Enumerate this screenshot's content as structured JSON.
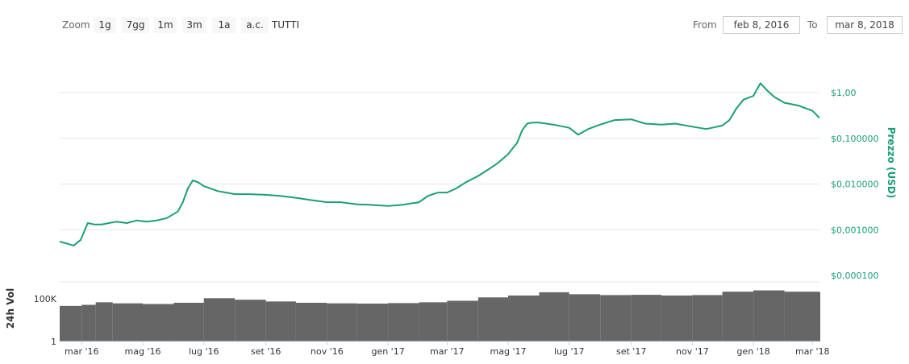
{
  "toolbar": {
    "zoom_label": "Zoom",
    "zoom_buttons": [
      "1g",
      "7gg",
      "1m",
      "3m",
      "1a",
      "a.c.",
      "TUTTI"
    ],
    "from_label": "From",
    "from_value": "feb 8, 2016",
    "to_label": "To",
    "to_value": "mar 8, 2018"
  },
  "colors": {
    "price_line": "#1b9e77",
    "price_axis_text": "#1b9e77",
    "volume_bar": "#666666",
    "grid": "#e6e6e6"
  },
  "chart_data": [
    {
      "type": "line",
      "title": "",
      "ylabel": "Prezzo (USD)",
      "y_scale": "log",
      "ylim": [
        0.0001,
        3
      ],
      "y_ticks": [
        {
          "value": 0.0001,
          "label": "$0,000100"
        },
        {
          "value": 0.001,
          "label": "$0,001000"
        },
        {
          "value": 0.01,
          "label": "$0,010000"
        },
        {
          "value": 0.1,
          "label": "$0,100000"
        },
        {
          "value": 1,
          "label": "$1,00"
        }
      ],
      "xlim": [
        "2016-02-08",
        "2018-03-08"
      ],
      "x_ticks": [
        {
          "value": "2016-03-01",
          "label": "mar '16"
        },
        {
          "value": "2016-05-01",
          "label": "mag '16"
        },
        {
          "value": "2016-07-01",
          "label": "lug '16"
        },
        {
          "value": "2016-09-01",
          "label": "set '16"
        },
        {
          "value": "2016-11-01",
          "label": "nov '16"
        },
        {
          "value": "2017-01-01",
          "label": "gen '17"
        },
        {
          "value": "2017-03-01",
          "label": "mar '17"
        },
        {
          "value": "2017-05-01",
          "label": "mag '17"
        },
        {
          "value": "2017-07-01",
          "label": "lug '17"
        },
        {
          "value": "2017-09-01",
          "label": "set '17"
        },
        {
          "value": "2017-11-01",
          "label": "nov '17"
        },
        {
          "value": "2018-01-01",
          "label": "gen '18"
        },
        {
          "value": "2018-03-01",
          "label": "mar '18"
        }
      ],
      "grid": true,
      "series": [
        {
          "x": [
            "2016-02-08",
            "2016-02-15",
            "2016-02-22",
            "2016-02-29",
            "2016-03-07",
            "2016-03-14",
            "2016-03-21",
            "2016-03-28",
            "2016-04-05",
            "2016-04-15",
            "2016-04-25",
            "2016-05-05",
            "2016-05-15",
            "2016-05-25",
            "2016-06-05",
            "2016-06-10",
            "2016-06-15",
            "2016-06-20",
            "2016-06-25",
            "2016-07-01",
            "2016-07-15",
            "2016-08-01",
            "2016-08-15",
            "2016-09-01",
            "2016-09-15",
            "2016-10-01",
            "2016-10-15",
            "2016-11-01",
            "2016-11-15",
            "2016-12-01",
            "2016-12-15",
            "2017-01-01",
            "2017-01-15",
            "2017-02-01",
            "2017-02-10",
            "2017-02-20",
            "2017-03-01",
            "2017-03-10",
            "2017-03-20",
            "2017-04-01",
            "2017-04-10",
            "2017-04-20",
            "2017-05-01",
            "2017-05-10",
            "2017-05-15",
            "2017-05-20",
            "2017-05-25",
            "2017-06-01",
            "2017-06-15",
            "2017-07-01",
            "2017-07-10",
            "2017-07-20",
            "2017-08-01",
            "2017-08-15",
            "2017-09-01",
            "2017-09-15",
            "2017-10-01",
            "2017-10-15",
            "2017-11-01",
            "2017-11-15",
            "2017-12-01",
            "2017-12-08",
            "2017-12-15",
            "2017-12-22",
            "2018-01-01",
            "2018-01-08",
            "2018-01-15",
            "2018-01-22",
            "2018-02-01",
            "2018-02-15",
            "2018-03-01",
            "2018-03-08"
          ],
          "values": [
            0.00055,
            0.0005,
            0.00045,
            0.0006,
            0.0014,
            0.0013,
            0.0013,
            0.0014,
            0.0015,
            0.0014,
            0.0016,
            0.0015,
            0.0016,
            0.0018,
            0.0025,
            0.004,
            0.008,
            0.012,
            0.011,
            0.009,
            0.007,
            0.006,
            0.006,
            0.0058,
            0.0055,
            0.005,
            0.0045,
            0.004,
            0.004,
            0.0036,
            0.0035,
            0.0033,
            0.0035,
            0.004,
            0.0055,
            0.0065,
            0.0065,
            0.008,
            0.011,
            0.015,
            0.02,
            0.028,
            0.045,
            0.08,
            0.15,
            0.21,
            0.22,
            0.22,
            0.2,
            0.17,
            0.12,
            0.16,
            0.2,
            0.25,
            0.26,
            0.21,
            0.2,
            0.21,
            0.18,
            0.16,
            0.19,
            0.25,
            0.45,
            0.7,
            0.85,
            1.6,
            1.1,
            0.8,
            0.6,
            0.52,
            0.4,
            0.28
          ]
        }
      ]
    },
    {
      "type": "bar",
      "title": "",
      "ylabel": "24h Vol",
      "y_scale": "log",
      "ylim": [
        1,
        10000000
      ],
      "y_ticks": [
        {
          "value": 1,
          "label": "1"
        },
        {
          "value": 100000,
          "label": "100K"
        }
      ],
      "xlim": [
        "2016-02-08",
        "2018-03-08"
      ],
      "series": [
        {
          "x": [
            "2016-02-08",
            "2016-03-01",
            "2016-03-15",
            "2016-04-01",
            "2016-05-01",
            "2016-06-01",
            "2016-07-01",
            "2016-08-01",
            "2016-09-01",
            "2016-10-01",
            "2016-11-01",
            "2016-12-01",
            "2017-01-01",
            "2017-02-01",
            "2017-03-01",
            "2017-04-01",
            "2017-05-01",
            "2017-06-01",
            "2017-07-01",
            "2017-08-01",
            "2017-09-01",
            "2017-10-01",
            "2017-11-01",
            "2017-12-01",
            "2018-01-01",
            "2018-02-01",
            "2018-03-08"
          ],
          "values": [
            15000,
            20000,
            40000,
            30000,
            25000,
            35000,
            120000,
            80000,
            50000,
            35000,
            30000,
            28000,
            32000,
            40000,
            60000,
            150000,
            250000,
            600000,
            350000,
            280000,
            300000,
            250000,
            280000,
            700000,
            1000000,
            700000,
            600000
          ]
        }
      ]
    }
  ]
}
